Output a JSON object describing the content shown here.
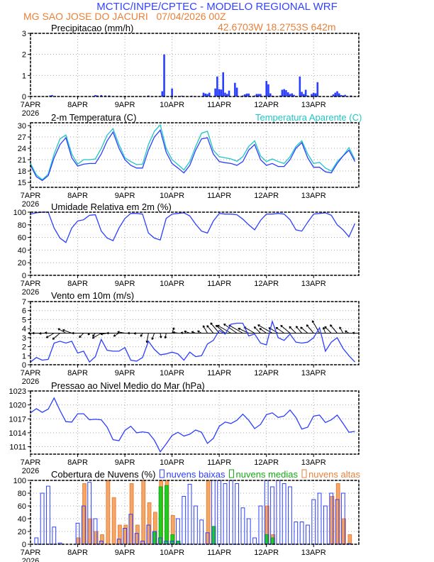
{
  "header": {
    "title": "MCTIC/INPE/CPTEC - MODELO REGIONAL WRF",
    "location": "MG SAO JOSE DO JACURI   07/04/2026 00Z",
    "coords": "42.6703W 18.2753S 642m"
  },
  "colors": {
    "blue": "#2b3fff",
    "cyan": "#1fc6c6",
    "orange": "#e8803a",
    "orange_fill": "#f5a768",
    "green": "#22cc22",
    "title_blue": "#3344ff"
  },
  "x_axis": {
    "range": [
      "07APR 00Z",
      "13APR 23Z"
    ],
    "tick_labels": [
      "7APR",
      "8APR",
      "9APR",
      "10APR",
      "11APR",
      "12APR",
      "13APR"
    ],
    "year": "2026"
  },
  "times": [
    "07APR 00Z",
    "07APR 03Z",
    "07APR 06Z",
    "07APR 09Z",
    "07APR 12Z",
    "07APR 15Z",
    "07APR 18Z",
    "07APR 21Z",
    "08APR 00Z",
    "08APR 03Z",
    "08APR 06Z",
    "08APR 09Z",
    "08APR 12Z",
    "08APR 15Z",
    "08APR 18Z",
    "08APR 21Z",
    "09APR 00Z",
    "09APR 03Z",
    "09APR 06Z",
    "09APR 09Z",
    "09APR 12Z",
    "09APR 15Z",
    "09APR 18Z",
    "09APR 21Z",
    "10APR 00Z",
    "10APR 03Z",
    "10APR 06Z",
    "10APR 09Z",
    "10APR 12Z",
    "10APR 15Z",
    "10APR 18Z",
    "10APR 21Z",
    "11APR 00Z",
    "11APR 03Z",
    "11APR 06Z",
    "11APR 09Z",
    "11APR 12Z",
    "11APR 15Z",
    "11APR 18Z",
    "11APR 21Z",
    "12APR 00Z",
    "12APR 03Z",
    "12APR 06Z",
    "12APR 09Z",
    "12APR 12Z",
    "12APR 15Z",
    "12APR 18Z",
    "12APR 21Z",
    "13APR 00Z",
    "13APR 03Z",
    "13APR 06Z",
    "13APR 09Z",
    "13APR 12Z",
    "13APR 15Z",
    "13APR 18Z",
    "13APR 21Z"
  ],
  "chart_data": [
    {
      "type": "bar",
      "title": "Precipitacao (mm/h)",
      "ylim": [
        0,
        3
      ],
      "y_ticks": [
        0,
        1,
        2,
        3
      ],
      "grid": true,
      "series": [
        {
          "values": [
            [
              "07APR 10Z",
              0.05
            ],
            [
              "07APR 11Z",
              0.07
            ],
            [
              "08APR 09Z",
              0.07
            ],
            [
              "08APR 10Z",
              0.05
            ],
            [
              "08APR 12Z",
              0.07
            ],
            [
              "08APR 14Z",
              0.05
            ],
            [
              "08APR 16Z",
              0.05
            ],
            [
              "09APR 12Z",
              0.05
            ],
            [
              "09APR 19Z",
              0.25
            ],
            [
              "09APR 20Z",
              2.0
            ],
            [
              "10APR 00Z",
              0.38
            ],
            [
              "10APR 05Z",
              0.04
            ],
            [
              "10APR 10Z",
              0.04
            ],
            [
              "10APR 16Z",
              0.18
            ],
            [
              "10APR 17Z",
              0.14
            ],
            [
              "10APR 18Z",
              0.12
            ],
            [
              "10APR 19Z",
              0.18
            ],
            [
              "10APR 22Z",
              0.38
            ],
            [
              "10APR 23Z",
              0.95
            ],
            [
              "11APR 00Z",
              0.35
            ],
            [
              "11APR 01Z",
              0.33
            ],
            [
              "11APR 02Z",
              1.15
            ],
            [
              "11APR 03Z",
              0.18
            ],
            [
              "11APR 04Z",
              0.12
            ],
            [
              "11APR 05Z",
              0.28
            ],
            [
              "11APR 08Z",
              0.65
            ],
            [
              "11APR 09Z",
              0.42
            ],
            [
              "11APR 12Z",
              0.05
            ],
            [
              "11APR 13Z",
              0.1
            ],
            [
              "11APR 14Z",
              0.14
            ],
            [
              "11APR 15Z",
              0.14
            ],
            [
              "11APR 18Z",
              0.05
            ],
            [
              "11APR 19Z",
              0.12
            ],
            [
              "11APR 20Z",
              0.12
            ],
            [
              "11APR 21Z",
              0.12
            ],
            [
              "11APR 23Z",
              0.04
            ],
            [
              "12APR 00Z",
              0.74
            ],
            [
              "12APR 01Z",
              0.58
            ],
            [
              "12APR 02Z",
              0.15
            ],
            [
              "12APR 03Z",
              0.04
            ],
            [
              "12APR 07Z",
              0.05
            ],
            [
              "12APR 08Z",
              0.32
            ],
            [
              "12APR 09Z",
              0.35
            ],
            [
              "12APR 10Z",
              0.3
            ],
            [
              "12APR 11Z",
              0.2
            ],
            [
              "12APR 12Z",
              0.12
            ],
            [
              "12APR 13Z",
              0.15
            ],
            [
              "12APR 14Z",
              0.08
            ],
            [
              "12APR 17Z",
              0.95
            ],
            [
              "12APR 18Z",
              0.22
            ],
            [
              "12APR 19Z",
              0.12
            ],
            [
              "12APR 20Z",
              0.32
            ],
            [
              "12APR 21Z",
              0.05
            ],
            [
              "12APR 23Z",
              0.12
            ],
            [
              "13APR 00Z",
              0.18
            ],
            [
              "13APR 01Z",
              0.15
            ],
            [
              "13APR 02Z",
              0.68
            ],
            [
              "13APR 10Z",
              0.1
            ],
            [
              "13APR 11Z",
              0.18
            ],
            [
              "13APR 12Z",
              0.25
            ],
            [
              "13APR 13Z",
              0.15
            ],
            [
              "13APR 14Z",
              0.07
            ],
            [
              "13APR 15Z",
              0.05
            ],
            [
              "13APR 16Z",
              0.08
            ],
            [
              "13APR 19Z",
              0.05
            ]
          ]
        }
      ]
    },
    {
      "type": "line",
      "title": "2-m Temperatura (C)",
      "ylim": [
        13.7,
        30.75
      ],
      "y_ticks": [
        15,
        18,
        21,
        24,
        27,
        30
      ],
      "grid": true,
      "series": [
        {
          "values": [
            19.5,
            16.5,
            15.5,
            16.8,
            21.5,
            25,
            26.8,
            21.5,
            19.3,
            19.8,
            20,
            20,
            22.5,
            26,
            28.3,
            24,
            21,
            19.5,
            18.8,
            18.8,
            23.5,
            27,
            28.8,
            23,
            20,
            18.8,
            17.5,
            19.5,
            23.5,
            26.5,
            26.8,
            22.5,
            20.5,
            20.2,
            20,
            19.5,
            20.5,
            23.5,
            25,
            21,
            19.5,
            20,
            19.2,
            19.2,
            21,
            24,
            25.5,
            21.5,
            19,
            19,
            17.8,
            17.5,
            20,
            22,
            23.5,
            20.5
          ]
        },
        {
          "name": "Temperatura Aparente (C)",
          "values": [
            20,
            17,
            15.7,
            17.2,
            22.5,
            26.5,
            27.5,
            22.5,
            19.8,
            21,
            21,
            21.2,
            24,
            27.5,
            29.2,
            25,
            21.5,
            20.5,
            19.7,
            19.8,
            25,
            28.5,
            30.2,
            24,
            21,
            19.7,
            18.3,
            20.5,
            24.5,
            28,
            28.5,
            23.5,
            21.8,
            21.5,
            21.2,
            20.6,
            21.8,
            24.5,
            26,
            22,
            20.5,
            21.2,
            20.5,
            20,
            21.8,
            24.5,
            26,
            22.5,
            20,
            20.3,
            18.8,
            18,
            20.5,
            22,
            24.2,
            21
          ]
        }
      ]
    },
    {
      "type": "line",
      "title": "Umidade Relativa em 2m (%)",
      "ylim": [
        0,
        100
      ],
      "y_ticks": [
        0,
        20,
        40,
        60,
        80,
        100
      ],
      "grid": true,
      "series": [
        {
          "values": [
            97,
            99,
            100,
            100,
            75,
            59,
            52,
            75,
            86,
            88,
            95,
            96,
            70,
            59,
            55,
            75,
            90,
            98,
            98,
            97,
            67,
            59,
            56,
            90,
            97,
            98,
            99,
            94,
            81,
            70,
            67,
            86,
            98,
            97,
            97,
            96,
            89,
            80,
            72,
            87,
            97,
            97,
            98,
            97,
            88,
            72,
            70,
            84,
            97,
            98,
            99,
            95,
            80,
            72,
            61,
            82
          ]
        }
      ]
    },
    {
      "type": "line",
      "title": "Vento em 10m (m/s)",
      "ylim": [
        0,
        7
      ],
      "y_ticks": [
        0,
        1,
        2,
        3,
        4,
        5,
        6,
        7
      ],
      "grid": true,
      "series": [
        {
          "values": [
            0.3,
            0.8,
            0.5,
            0.6,
            2.4,
            2.6,
            2.4,
            2.6,
            1.3,
            1.5,
            0.3,
            0.9,
            2.8,
            1.6,
            1.5,
            1.5,
            1.9,
            0.5,
            0.4,
            0.8,
            2.6,
            1.7,
            1.1,
            1.2,
            1.4,
            1.2,
            0.5,
            1.4,
            0.9,
            1.0,
            2.3,
            2.7,
            3.8,
            3.4,
            4.5,
            4.6,
            4.6,
            3.2,
            3.4,
            2.4,
            2.2,
            4.8,
            3.0,
            2.7,
            3.4,
            2.5,
            2.4,
            2.5,
            3.0,
            4.1,
            1.5,
            2.5,
            3.0,
            1.8,
            1.0,
            0.3
          ]
        }
      ],
      "vectors": {
        "baseline": 3.5,
        "direction_from_deg": [
          90,
          90,
          80,
          100,
          60,
          50,
          120,
          110,
          90,
          45,
          40,
          40,
          60,
          80,
          90,
          60,
          100,
          90,
          80,
          30,
          10,
          20,
          350,
          10,
          200,
          100,
          100,
          110,
          110,
          120,
          150,
          140,
          140,
          130,
          120,
          125,
          120,
          115,
          120,
          135,
          125,
          120,
          120,
          125,
          130,
          135,
          140,
          130,
          140,
          150,
          160,
          135,
          140,
          150,
          120,
          100
        ]
      }
    },
    {
      "type": "line",
      "title": "Pressao ao Nivel Medio do Mar (hPa)",
      "ylim": [
        1009.4,
        1023
      ],
      "y_ticks": [
        1011,
        1014,
        1017,
        1020,
        1023
      ],
      "grid": true,
      "series": [
        {
          "values": [
            1018.3,
            1019.2,
            1018.4,
            1019.1,
            1021.5,
            1018.8,
            1016.4,
            1016.3,
            1018.1,
            1018.1,
            1016.8,
            1016.9,
            1016.8,
            1015.2,
            1012.5,
            1012.3,
            1014.5,
            1015.4,
            1014.0,
            1014.2,
            1014.0,
            1012.4,
            1009.9,
            1011.6,
            1013.4,
            1014.1,
            1013.3,
            1013.7,
            1014.6,
            1014.1,
            1011.7,
            1012.8,
            1015.4,
            1016.3,
            1016.0,
            1016.7,
            1018.0,
            1016.7,
            1014.9,
            1015.8,
            1017.9,
            1018.3,
            1017.3,
            1017.6,
            1018.9,
            1017.3,
            1014.8,
            1015.2,
            1017.6,
            1017.8,
            1016.2,
            1016.8,
            1017.8,
            1016.0,
            1014.1,
            1014.3
          ]
        }
      ]
    },
    {
      "type": "bar",
      "title": "Cobertura de Nuvens (%)",
      "ylim": [
        0,
        100
      ],
      "y_ticks": [
        0,
        20,
        40,
        60,
        80,
        100
      ],
      "grid": true,
      "legend": "top",
      "series": [
        {
          "name": "nuvens altas",
          "values": [
            0,
            0,
            0,
            0,
            0,
            0,
            0,
            0,
            10,
            95,
            40,
            20,
            15,
            100,
            73,
            30,
            30,
            95,
            30,
            100,
            65,
            50,
            100,
            100,
            45,
            0,
            0,
            0,
            0,
            0,
            100,
            0,
            0,
            0,
            0,
            0,
            0,
            0,
            0,
            0,
            60,
            15,
            0,
            0,
            0,
            0,
            0,
            0,
            0,
            0,
            0,
            75,
            95,
            40,
            15,
            0
          ]
        },
        {
          "name": "nuvens medias",
          "values": [
            0,
            0,
            0,
            0,
            0,
            0,
            0,
            0,
            0,
            0,
            0,
            0,
            0,
            0,
            0,
            0,
            0,
            0,
            0,
            0,
            0,
            20,
            90,
            92,
            15,
            5,
            0,
            0,
            0,
            0,
            0,
            28,
            0,
            0,
            0,
            0,
            0,
            0,
            0,
            0,
            15,
            10,
            0,
            0,
            0,
            0,
            0,
            0,
            0,
            0,
            0,
            0,
            0,
            0,
            0,
            0
          ]
        },
        {
          "name": "nuvens baixas",
          "values": [
            0,
            10,
            80,
            91,
            27,
            2,
            0,
            0,
            33,
            60,
            97,
            40,
            5,
            0,
            0,
            8,
            25,
            47,
            17,
            5,
            30,
            20,
            10,
            5,
            5,
            40,
            75,
            94,
            60,
            38,
            18,
            100,
            100,
            95,
            100,
            95,
            57,
            40,
            10,
            60,
            100,
            90,
            100,
            95,
            90,
            35,
            35,
            30,
            70,
            80,
            60,
            80,
            70,
            80,
            1,
            0
          ]
        }
      ]
    }
  ]
}
